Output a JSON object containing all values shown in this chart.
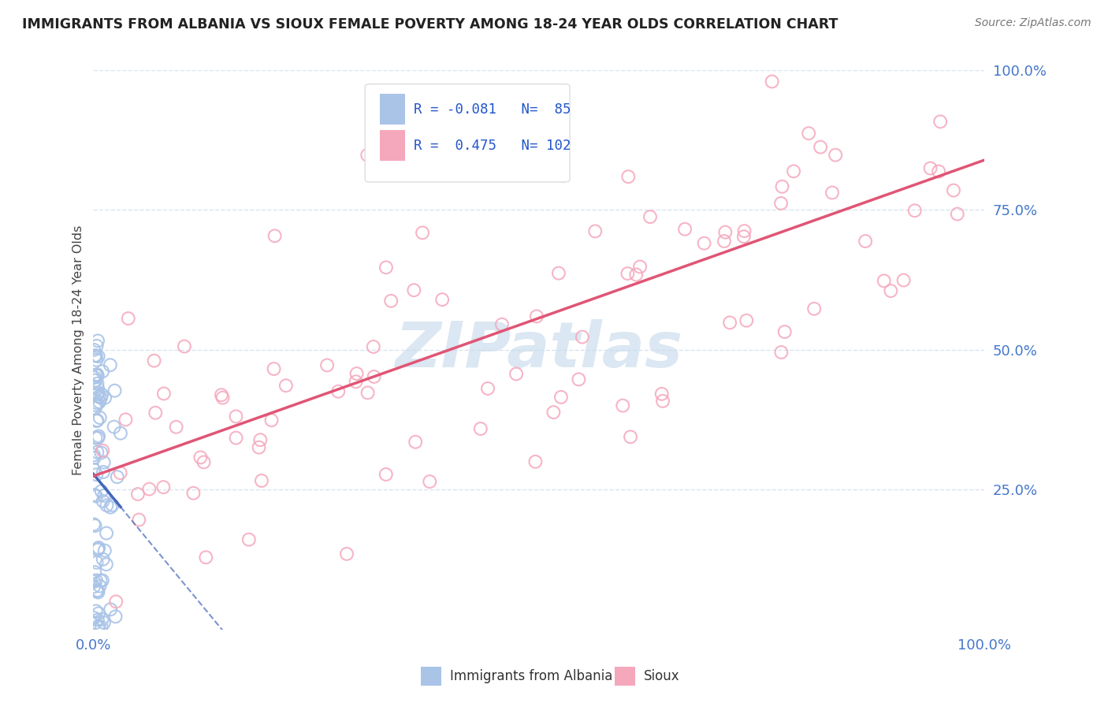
{
  "title": "IMMIGRANTS FROM ALBANIA VS SIOUX FEMALE POVERTY AMONG 18-24 YEAR OLDS CORRELATION CHART",
  "source": "Source: ZipAtlas.com",
  "ylabel": "Female Poverty Among 18-24 Year Olds",
  "legend_label1": "Immigrants from Albania",
  "legend_label2": "Sioux",
  "r1": -0.081,
  "n1": 85,
  "r2": 0.475,
  "n2": 102,
  "color_albania": "#aac4e8",
  "color_sioux": "#f5a8bc",
  "color_albania_line": "#4466bb",
  "color_sioux_line": "#e05575",
  "watermark_color": "#ccdded",
  "background_color": "#ffffff",
  "grid_color": "#d8e4f0",
  "right_tick_color": "#4477cc",
  "bottom_tick_color": "#4477cc",
  "title_color": "#222222",
  "source_color": "#777777",
  "ylabel_color": "#444444",
  "legend_text_color": "#2255cc"
}
